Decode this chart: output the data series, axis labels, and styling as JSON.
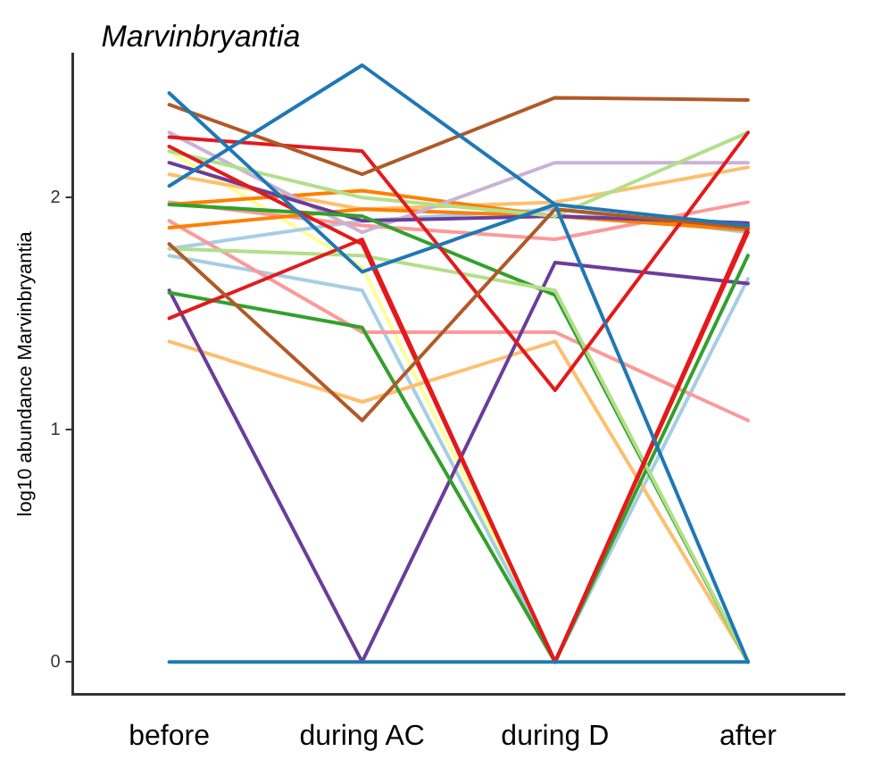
{
  "chart_data": {
    "type": "line",
    "title": "Marvinbryantia",
    "ylabel": "log10 abundance Marvinbryantia",
    "categories": [
      "before",
      "during AC",
      "during D",
      "after"
    ],
    "ylim": [
      -0.14,
      2.62
    ],
    "yticks": [
      0,
      1,
      2
    ],
    "grid": false,
    "legend": false,
    "marker": "none",
    "line_style": "solid",
    "series": [
      {
        "color": "#1f78b4",
        "values": [
          2.45,
          1.68,
          1.97,
          0
        ]
      },
      {
        "color": "#1f78b4",
        "values": [
          2.05,
          2.57,
          1.97,
          1.88
        ]
      },
      {
        "color": "#1f78b4",
        "values": [
          0,
          0,
          0,
          0
        ]
      },
      {
        "color": "#b15928",
        "values": [
          2.4,
          2.1,
          2.43,
          2.42
        ]
      },
      {
        "color": "#b15928",
        "values": [
          1.8,
          1.04,
          1.95,
          1.87
        ]
      },
      {
        "color": "#e31a1c",
        "values": [
          2.26,
          2.2,
          1.17,
          2.28
        ]
      },
      {
        "color": "#e31a1c",
        "values": [
          1.48,
          1.82,
          0,
          1.85
        ]
      },
      {
        "color": "#e31a1c",
        "values": [
          2.22,
          1.8,
          0,
          1.87
        ]
      },
      {
        "color": "#b2df8a",
        "values": [
          2.2,
          2.0,
          1.92,
          2.28
        ]
      },
      {
        "color": "#b2df8a",
        "values": [
          1.78,
          1.75,
          1.6,
          0
        ]
      },
      {
        "color": "#33a02c",
        "values": [
          1.59,
          1.44,
          0,
          1.75
        ]
      },
      {
        "color": "#33a02c",
        "values": [
          1.97,
          1.92,
          1.58,
          0
        ]
      },
      {
        "color": "#6a3d9a",
        "values": [
          2.15,
          1.9,
          1.92,
          1.89
        ]
      },
      {
        "color": "#6a3d9a",
        "values": [
          1.6,
          0,
          1.72,
          1.63
        ]
      },
      {
        "color": "#cab2d6",
        "values": [
          2.28,
          1.85,
          2.15,
          2.15
        ]
      },
      {
        "color": "#ff7f00",
        "values": [
          1.87,
          1.95,
          1.92,
          1.88
        ]
      },
      {
        "color": "#ff7f00",
        "values": [
          1.97,
          2.03,
          1.92,
          1.86
        ]
      },
      {
        "color": "#fdbf6f",
        "values": [
          1.38,
          1.12,
          1.38,
          0
        ]
      },
      {
        "color": "#fdbf6f",
        "values": [
          2.1,
          1.95,
          1.98,
          2.13
        ]
      },
      {
        "color": "#fb9a99",
        "values": [
          1.9,
          1.42,
          1.42,
          1.04
        ]
      },
      {
        "color": "#fb9a99",
        "values": [
          1.98,
          1.88,
          1.82,
          1.98
        ]
      },
      {
        "color": "#a6cee3",
        "values": [
          1.75,
          1.6,
          0,
          1.65
        ]
      },
      {
        "color": "#a6cee3",
        "values": [
          1.78,
          1.9,
          1.95,
          1.85
        ]
      },
      {
        "color": "#ffff99",
        "values": [
          2.2,
          1.7,
          0,
          1.85
        ]
      }
    ]
  }
}
